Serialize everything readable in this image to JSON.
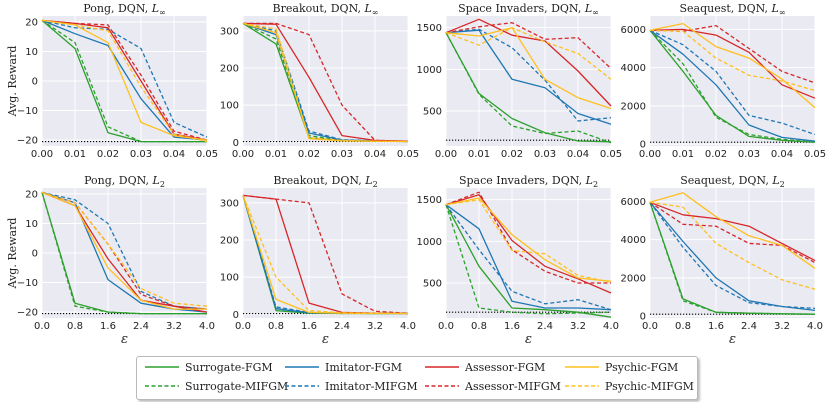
{
  "colors": {
    "surrogate": "#2ca02c",
    "imitator": "#1f77b4",
    "assessor": "#d62728",
    "psychic": "#ffbf1f",
    "plot_bg": "#eaeaf2",
    "grid": "#ffffff"
  },
  "legend": {
    "items": [
      {
        "label": "Surrogate-FGM",
        "key": "surrogate",
        "dashed": false
      },
      {
        "label": "Imitator-FGM",
        "key": "imitator",
        "dashed": false
      },
      {
        "label": "Assessor-FGM",
        "key": "assessor",
        "dashed": false
      },
      {
        "label": "Psychic-FGM",
        "key": "psychic",
        "dashed": false
      },
      {
        "label": "Surrogate-MIFGM",
        "key": "surrogate",
        "dashed": true
      },
      {
        "label": "Imitator-MIFGM",
        "key": "imitator",
        "dashed": true
      },
      {
        "label": "Assessor-MIFGM",
        "key": "assessor",
        "dashed": true
      },
      {
        "label": "Psychic-MIFGM",
        "key": "psychic",
        "dashed": true
      }
    ]
  },
  "ylabel": "Avg. Reward",
  "xlabel_row2": "ε",
  "chart_data": [
    {
      "type": "line",
      "title": "Pong, DQN, L∞",
      "title_main": "Pong, DQN, ",
      "title_norm": "L",
      "title_sub": "∞",
      "x": [
        0.0,
        0.01,
        0.02,
        0.03,
        0.04,
        0.05
      ],
      "xticks": [
        "0.00",
        "0.01",
        "0.02",
        "0.03",
        "0.04",
        "0.05"
      ],
      "ylim": [
        -22,
        22
      ],
      "yticks": [
        20,
        10,
        0,
        -10,
        -20
      ],
      "baseline": -20.5,
      "series": [
        {
          "name": "Surrogate-FGM",
          "values": [
            20.5,
            11,
            -17.5,
            -20.5,
            -20.5,
            -20.5
          ]
        },
        {
          "name": "Surrogate-MIFGM",
          "values": [
            20.5,
            13,
            -15.5,
            -20.5,
            -20.5,
            -20.5
          ]
        },
        {
          "name": "Imitator-FGM",
          "values": [
            20.5,
            16,
            12,
            -6,
            -19,
            -20
          ]
        },
        {
          "name": "Imitator-MIFGM",
          "values": [
            20.5,
            18,
            17.5,
            11,
            -14,
            -19
          ]
        },
        {
          "name": "Assessor-FGM",
          "values": [
            20.5,
            19.5,
            18,
            0,
            -18,
            -20
          ]
        },
        {
          "name": "Assessor-MIFGM",
          "values": [
            20.5,
            19.5,
            19,
            2,
            -17,
            -20
          ]
        },
        {
          "name": "Psychic-FGM",
          "values": [
            20.5,
            19,
            13,
            -14,
            -18.5,
            -20
          ]
        },
        {
          "name": "Psychic-MIFGM",
          "values": [
            20.5,
            19,
            17,
            -2,
            -18,
            -20.5
          ]
        }
      ]
    },
    {
      "type": "line",
      "title": "Breakout, DQN, L∞",
      "title_main": "Breakout, DQN, ",
      "title_norm": "L",
      "title_sub": "∞",
      "x": [
        0.0,
        0.01,
        0.02,
        0.03,
        0.04,
        0.05
      ],
      "xticks": [
        "0.00",
        "0.01",
        "0.02",
        "0.03",
        "0.04",
        "0.05"
      ],
      "ylim": [
        -10,
        340
      ],
      "yticks": [
        300,
        200,
        100,
        0
      ],
      "baseline": 2,
      "series": [
        {
          "name": "Surrogate-FGM",
          "values": [
            320,
            265,
            12,
            4,
            3,
            2
          ]
        },
        {
          "name": "Surrogate-MIFGM",
          "values": [
            320,
            278,
            18,
            5,
            3,
            2
          ]
        },
        {
          "name": "Imitator-FGM",
          "values": [
            320,
            290,
            25,
            6,
            4,
            2
          ]
        },
        {
          "name": "Imitator-MIFGM",
          "values": [
            320,
            300,
            30,
            7,
            4,
            2
          ]
        },
        {
          "name": "Assessor-FGM",
          "values": [
            320,
            318,
            175,
            18,
            5,
            3
          ]
        },
        {
          "name": "Assessor-MIFGM",
          "values": [
            320,
            320,
            290,
            100,
            5,
            3
          ]
        },
        {
          "name": "Psychic-FGM",
          "values": [
            320,
            295,
            10,
            4,
            3,
            2
          ]
        },
        {
          "name": "Psychic-MIFGM",
          "values": [
            320,
            305,
            12,
            5,
            3,
            2
          ]
        }
      ]
    },
    {
      "type": "line",
      "title": "Space Invaders, DQN, L∞",
      "title_main": "Space Invaders, DQN, ",
      "title_norm": "L",
      "title_sub": "∞",
      "x": [
        0.0,
        0.01,
        0.02,
        0.03,
        0.04,
        0.05
      ],
      "xticks": [
        "0.00",
        "0.01",
        "0.02",
        "0.03",
        "0.04",
        "0.05"
      ],
      "ylim": [
        80,
        1640
      ],
      "yticks": [
        1500,
        1000,
        500
      ],
      "baseline": 150,
      "series": [
        {
          "name": "Surrogate-FGM",
          "values": [
            1440,
            710,
            410,
            240,
            140,
            130
          ]
        },
        {
          "name": "Surrogate-MIFGM",
          "values": [
            1440,
            700,
            320,
            230,
            260,
            120
          ]
        },
        {
          "name": "Imitator-FGM",
          "values": [
            1440,
            1470,
            880,
            780,
            470,
            340
          ]
        },
        {
          "name": "Imitator-MIFGM",
          "values": [
            1440,
            1480,
            1260,
            870,
            380,
            420
          ]
        },
        {
          "name": "Assessor-FGM",
          "values": [
            1440,
            1600,
            1410,
            1340,
            980,
            560
          ]
        },
        {
          "name": "Assessor-MIFGM",
          "values": [
            1440,
            1510,
            1560,
            1360,
            1380,
            1010
          ]
        },
        {
          "name": "Psychic-FGM",
          "values": [
            1440,
            1400,
            1500,
            880,
            660,
            530
          ]
        },
        {
          "name": "Psychic-MIFGM",
          "values": [
            1440,
            1290,
            1500,
            1330,
            1190,
            880
          ]
        }
      ]
    },
    {
      "type": "line",
      "title": "Seaquest, DQN, L∞",
      "title_main": "Seaquest, DQN, ",
      "title_norm": "L",
      "title_sub": "∞",
      "x": [
        0.0,
        0.01,
        0.02,
        0.03,
        0.04,
        0.05
      ],
      "xticks": [
        "0.00",
        "0.01",
        "0.02",
        "0.03",
        "0.04",
        "0.05"
      ],
      "ylim": [
        -100,
        6700
      ],
      "yticks": [
        6000,
        4000,
        2000,
        0
      ],
      "baseline": 100,
      "series": [
        {
          "name": "Surrogate-FGM",
          "values": [
            5950,
            3800,
            1500,
            400,
            200,
            100
          ]
        },
        {
          "name": "Surrogate-MIFGM",
          "values": [
            5950,
            4200,
            1400,
            500,
            250,
            100
          ]
        },
        {
          "name": "Imitator-FGM",
          "values": [
            5950,
            4700,
            3100,
            1000,
            350,
            150
          ]
        },
        {
          "name": "Imitator-MIFGM",
          "values": [
            5950,
            5200,
            3800,
            1500,
            1100,
            500
          ]
        },
        {
          "name": "Assessor-FGM",
          "values": [
            5950,
            6000,
            5700,
            4800,
            3100,
            2400
          ]
        },
        {
          "name": "Assessor-MIFGM",
          "values": [
            5950,
            5900,
            6200,
            5000,
            3800,
            3200
          ]
        },
        {
          "name": "Psychic-FGM",
          "values": [
            5950,
            6300,
            5100,
            4500,
            3400,
            1900
          ]
        },
        {
          "name": "Psychic-MIFGM",
          "values": [
            5950,
            5900,
            4500,
            3600,
            3300,
            2800
          ]
        }
      ]
    },
    {
      "type": "line",
      "title": "Pong, DQN, L2",
      "title_main": "Pong, DQN, ",
      "title_norm": "L",
      "title_sub": "2",
      "x": [
        0.0,
        0.8,
        1.6,
        2.4,
        3.2,
        4.0
      ],
      "xticks": [
        "0.0",
        "0.8",
        "1.6",
        "2.4",
        "3.2",
        "4.0"
      ],
      "ylim": [
        -22,
        22
      ],
      "yticks": [
        20,
        10,
        0,
        -10,
        -20
      ],
      "baseline": -20.5,
      "series": [
        {
          "name": "Surrogate-FGM",
          "values": [
            20.5,
            -17,
            -20,
            -20.5,
            -20.5,
            -20.5
          ]
        },
        {
          "name": "Surrogate-MIFGM",
          "values": [
            20.5,
            -18,
            -20,
            -20.5,
            -20.5,
            -20.5
          ]
        },
        {
          "name": "Imitator-FGM",
          "values": [
            20.5,
            17,
            -9,
            -17,
            -19,
            -20
          ]
        },
        {
          "name": "Imitator-MIFGM",
          "values": [
            20.5,
            18,
            10,
            -13,
            -18,
            -19
          ]
        },
        {
          "name": "Assessor-FGM",
          "values": [
            20.5,
            16,
            -2,
            -16,
            -18,
            -20
          ]
        },
        {
          "name": "Assessor-MIFGM",
          "values": [
            20.5,
            17,
            3,
            -14,
            -18,
            -19
          ]
        },
        {
          "name": "Psychic-FGM",
          "values": [
            20.5,
            16,
            -5,
            -16,
            -19,
            -19
          ]
        },
        {
          "name": "Psychic-MIFGM",
          "values": [
            20.5,
            17,
            3,
            -12,
            -17,
            -18
          ]
        }
      ]
    },
    {
      "type": "line",
      "title": "Breakout, DQN, L2",
      "title_main": "Breakout, DQN, ",
      "title_norm": "L",
      "title_sub": "2",
      "x": [
        0.0,
        0.8,
        1.6,
        2.4,
        3.2,
        4.0
      ],
      "xticks": [
        "0.0",
        "0.8",
        "1.6",
        "2.4",
        "3.2",
        "4.0"
      ],
      "ylim": [
        -10,
        340
      ],
      "yticks": [
        300,
        200,
        100,
        0
      ],
      "baseline": 2,
      "series": [
        {
          "name": "Surrogate-FGM",
          "values": [
            320,
            10,
            3,
            2,
            2,
            2
          ]
        },
        {
          "name": "Surrogate-MIFGM",
          "values": [
            320,
            15,
            4,
            2,
            2,
            2
          ]
        },
        {
          "name": "Imitator-FGM",
          "values": [
            320,
            15,
            4,
            3,
            2,
            2
          ]
        },
        {
          "name": "Imitator-MIFGM",
          "values": [
            320,
            20,
            5,
            3,
            2,
            2
          ]
        },
        {
          "name": "Assessor-FGM",
          "values": [
            320,
            310,
            30,
            5,
            3,
            2
          ]
        },
        {
          "name": "Assessor-MIFGM",
          "values": [
            320,
            310,
            300,
            55,
            8,
            3
          ]
        },
        {
          "name": "Psychic-FGM",
          "values": [
            320,
            40,
            5,
            3,
            2,
            2
          ]
        },
        {
          "name": "Psychic-MIFGM",
          "values": [
            320,
            100,
            10,
            4,
            3,
            2
          ]
        }
      ]
    },
    {
      "type": "line",
      "title": "Space Invaders, DQN, L2",
      "title_main": "Space Invaders, DQN, ",
      "title_norm": "L",
      "title_sub": "2",
      "x": [
        0.0,
        0.8,
        1.6,
        2.4,
        3.2,
        4.0
      ],
      "xticks": [
        "0.0",
        "0.8",
        "1.6",
        "2.4",
        "3.2",
        "4.0"
      ],
      "ylim": [
        80,
        1640
      ],
      "yticks": [
        1500,
        1000,
        500
      ],
      "baseline": 150,
      "series": [
        {
          "name": "Surrogate-FGM",
          "values": [
            1440,
            700,
            200,
            180,
            150,
            90
          ]
        },
        {
          "name": "Surrogate-MIFGM",
          "values": [
            1440,
            200,
            150,
            130,
            140,
            150
          ]
        },
        {
          "name": "Imitator-FGM",
          "values": [
            1440,
            1150,
            280,
            200,
            200,
            180
          ]
        },
        {
          "name": "Imitator-MIFGM",
          "values": [
            1440,
            900,
            400,
            250,
            300,
            180
          ]
        },
        {
          "name": "Assessor-FGM",
          "values": [
            1440,
            1560,
            1010,
            700,
            550,
            380
          ]
        },
        {
          "name": "Assessor-MIFGM",
          "values": [
            1440,
            1590,
            900,
            640,
            500,
            500
          ]
        },
        {
          "name": "Psychic-FGM",
          "values": [
            1440,
            1520,
            1080,
            780,
            560,
            520
          ]
        },
        {
          "name": "Psychic-MIFGM",
          "values": [
            1440,
            1500,
            890,
            850,
            590,
            510
          ]
        }
      ]
    },
    {
      "type": "line",
      "title": "Seaquest, DQN, L2",
      "title_main": "Seaquest, DQN, ",
      "title_norm": "L",
      "title_sub": "2",
      "x": [
        0.0,
        0.8,
        1.6,
        2.4,
        3.2,
        4.0
      ],
      "xticks": [
        "0.0",
        "0.8",
        "1.6",
        "2.4",
        "3.2",
        "4.0"
      ],
      "ylim": [
        -100,
        6700
      ],
      "yticks": [
        6000,
        4000,
        2000,
        0
      ],
      "baseline": 100,
      "series": [
        {
          "name": "Surrogate-FGM",
          "values": [
            5950,
            900,
            200,
            150,
            120,
            100
          ]
        },
        {
          "name": "Surrogate-MIFGM",
          "values": [
            5950,
            800,
            200,
            150,
            120,
            100
          ]
        },
        {
          "name": "Imitator-FGM",
          "values": [
            5950,
            3900,
            2000,
            800,
            500,
            300
          ]
        },
        {
          "name": "Imitator-MIFGM",
          "values": [
            5950,
            3600,
            1600,
            700,
            500,
            400
          ]
        },
        {
          "name": "Assessor-FGM",
          "values": [
            5950,
            5300,
            5100,
            4700,
            3800,
            2900
          ]
        },
        {
          "name": "Assessor-MIFGM",
          "values": [
            5950,
            4800,
            4700,
            3800,
            3700,
            2800
          ]
        },
        {
          "name": "Psychic-FGM",
          "values": [
            5950,
            6450,
            5200,
            4200,
            3700,
            2500
          ]
        },
        {
          "name": "Psychic-MIFGM",
          "values": [
            5950,
            5700,
            3800,
            2800,
            1900,
            1400
          ]
        }
      ]
    }
  ]
}
